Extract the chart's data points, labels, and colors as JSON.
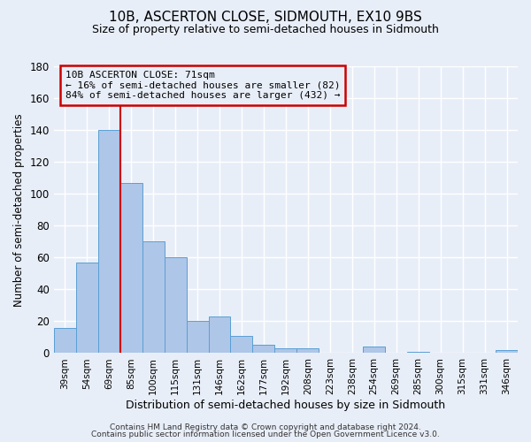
{
  "title": "10B, ASCERTON CLOSE, SIDMOUTH, EX10 9BS",
  "subtitle": "Size of property relative to semi-detached houses in Sidmouth",
  "xlabel": "Distribution of semi-detached houses by size in Sidmouth",
  "ylabel": "Number of semi-detached properties",
  "bin_labels": [
    "39sqm",
    "54sqm",
    "69sqm",
    "85sqm",
    "100sqm",
    "115sqm",
    "131sqm",
    "146sqm",
    "162sqm",
    "177sqm",
    "192sqm",
    "208sqm",
    "223sqm",
    "238sqm",
    "254sqm",
    "269sqm",
    "285sqm",
    "300sqm",
    "315sqm",
    "331sqm",
    "346sqm"
  ],
  "bar_heights": [
    16,
    57,
    140,
    107,
    70,
    60,
    20,
    23,
    11,
    5,
    3,
    3,
    0,
    0,
    4,
    0,
    1,
    0,
    0,
    0,
    2
  ],
  "bar_color": "#aec6e8",
  "bar_edge_color": "#5a9fd4",
  "marker_bin_index": 2,
  "marker_label": "10B ASCERTON CLOSE: 71sqm",
  "marker_line_color": "#cc0000",
  "annotation_smaller": "← 16% of semi-detached houses are smaller (82)",
  "annotation_larger": "84% of semi-detached houses are larger (432) →",
  "annotation_box_color": "#cc0000",
  "ylim": [
    0,
    180
  ],
  "yticks": [
    0,
    20,
    40,
    60,
    80,
    100,
    120,
    140,
    160,
    180
  ],
  "footer1": "Contains HM Land Registry data © Crown copyright and database right 2024.",
  "footer2": "Contains public sector information licensed under the Open Government Licence v3.0.",
  "background_color": "#e8eef8",
  "grid_color": "#ffffff"
}
